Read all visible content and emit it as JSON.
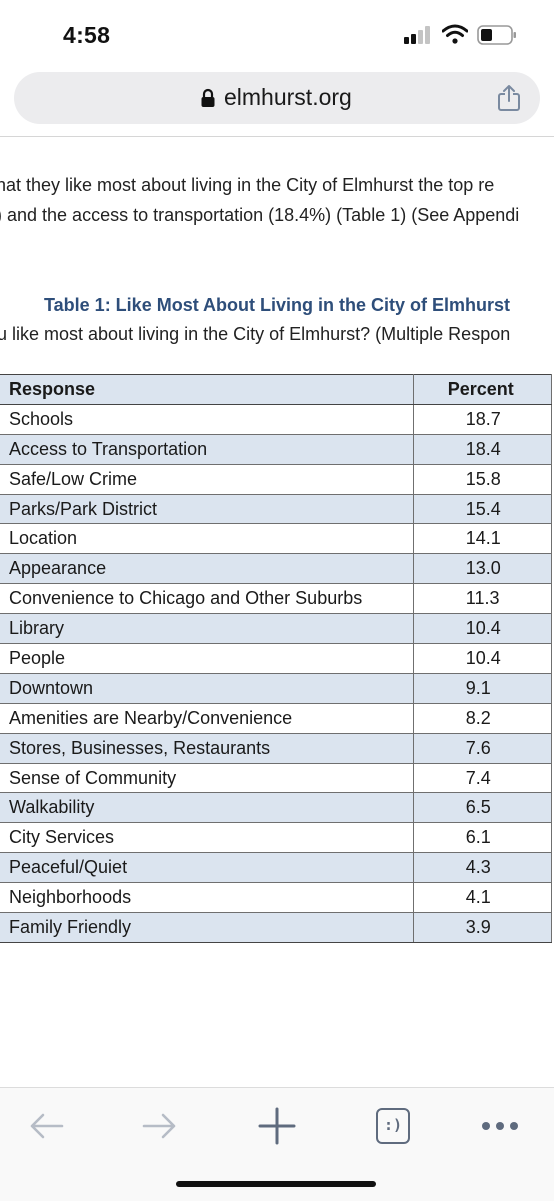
{
  "status": {
    "time": "4:58"
  },
  "urlbar": {
    "url": "elmhurst.org"
  },
  "document": {
    "line1": "hat they like most about living in the City of Elmhurst the top re",
    "line2": ") and the access to transportation (18.4%) (Table 1) (See Appendi",
    "table_caption": "Table 1:  Like Most About Living in the City of Elmhurst",
    "table_question": "u like most about living in the City of Elmhurst? (Multiple Respon",
    "table": {
      "headers": [
        "Response",
        "Percent"
      ],
      "rows": [
        {
          "response": "Schools",
          "percent": "18.7"
        },
        {
          "response": "Access to Transportation",
          "percent": "18.4"
        },
        {
          "response": "Safe/Low Crime",
          "percent": "15.8"
        },
        {
          "response": "Parks/Park District",
          "percent": "15.4"
        },
        {
          "response": "Location",
          "percent": "14.1"
        },
        {
          "response": "Appearance",
          "percent": "13.0"
        },
        {
          "response": "Convenience to Chicago and Other Suburbs",
          "percent": "11.3"
        },
        {
          "response": "Library",
          "percent": "10.4"
        },
        {
          "response": "People",
          "percent": "10.4"
        },
        {
          "response": "Downtown",
          "percent": "9.1"
        },
        {
          "response": "Amenities are Nearby/Convenience",
          "percent": "8.2"
        },
        {
          "response": "Stores, Businesses, Restaurants",
          "percent": "7.6"
        },
        {
          "response": "Sense of Community",
          "percent": "7.4"
        },
        {
          "response": "Walkability",
          "percent": "6.5"
        },
        {
          "response": "City Services",
          "percent": "6.1"
        },
        {
          "response": "Peaceful/Quiet",
          "percent": "4.3"
        },
        {
          "response": "Neighborhoods",
          "percent": "4.1"
        },
        {
          "response": "Family Friendly",
          "percent": "3.9"
        }
      ]
    }
  },
  "toolbar": {
    "back_icon": "arrow-left-icon",
    "forward_icon": "arrow-right-icon",
    "new_tab_icon": "plus-icon",
    "tabs_icon": "tabs-icon",
    "tabs_label": ":)",
    "menu_icon": "more-dots-icon"
  },
  "colors": {
    "caption": "#2e4e7a",
    "row_shade": "#dbe4ef",
    "urlbar_bg": "#ececee"
  }
}
